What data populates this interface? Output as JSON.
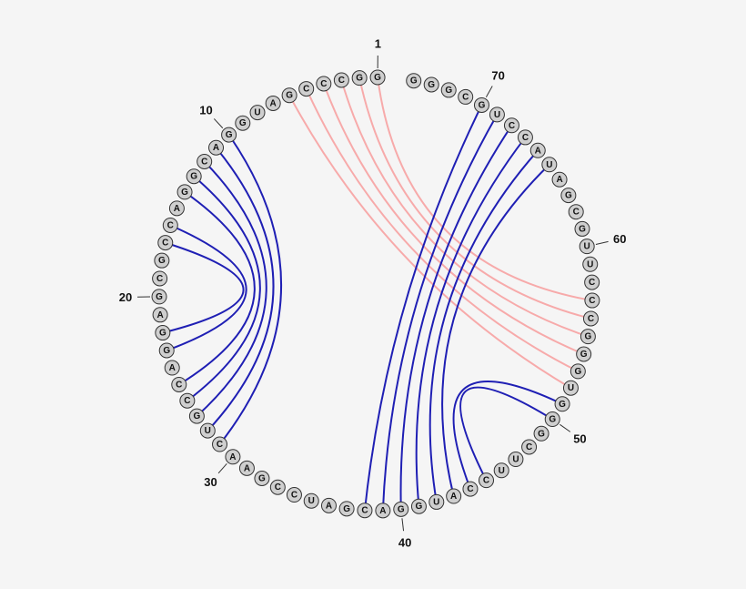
{
  "sequence": [
    "G",
    "G",
    "C",
    "C",
    "C",
    "G",
    "A",
    "U",
    "G",
    "G",
    "A",
    "C",
    "G",
    "G",
    "A",
    "C",
    "C",
    "G",
    "C",
    "G",
    "A",
    "G",
    "G",
    "A",
    "C",
    "C",
    "G",
    "U",
    "C",
    "A",
    "A",
    "G",
    "C",
    "C",
    "U",
    "A",
    "G",
    "C",
    "A",
    "G",
    "G",
    "U",
    "A",
    "C",
    "C",
    "U",
    "U",
    "C",
    "G",
    "G",
    "G",
    "U",
    "G",
    "G",
    "G",
    "C",
    "C",
    "C",
    "U",
    "U",
    "G",
    "C",
    "G",
    "A",
    "U",
    "A",
    "C",
    "C",
    "U",
    "G",
    "C",
    "G",
    "G",
    "G"
  ],
  "numbering": [
    1,
    10,
    20,
    30,
    40,
    50,
    60,
    70
  ],
  "pairs": [
    {
      "i": 1,
      "j": 57,
      "color": "#f7aaaa"
    },
    {
      "i": 2,
      "j": 56,
      "color": "#f7aaaa"
    },
    {
      "i": 3,
      "j": 55,
      "color": "#f7aaaa"
    },
    {
      "i": 4,
      "j": 54,
      "color": "#f7aaaa"
    },
    {
      "i": 5,
      "j": 53,
      "color": "#f7aaaa"
    },
    {
      "i": 6,
      "j": 52,
      "color": "#f7aaaa"
    },
    {
      "i": 10,
      "j": 29,
      "color": "#1f1fb4"
    },
    {
      "i": 11,
      "j": 28,
      "color": "#1f1fb4"
    },
    {
      "i": 12,
      "j": 27,
      "color": "#1f1fb4"
    },
    {
      "i": 13,
      "j": 26,
      "color": "#1f1fb4"
    },
    {
      "i": 14,
      "j": 25,
      "color": "#1f1fb4"
    },
    {
      "i": 16,
      "j": 23,
      "color": "#1f1fb4"
    },
    {
      "i": 17,
      "j": 22,
      "color": "#1f1fb4"
    },
    {
      "i": 38,
      "j": 70,
      "color": "#1f1fb4"
    },
    {
      "i": 39,
      "j": 69,
      "color": "#1f1fb4"
    },
    {
      "i": 40,
      "j": 68,
      "color": "#1f1fb4"
    },
    {
      "i": 41,
      "j": 67,
      "color": "#1f1fb4"
    },
    {
      "i": 42,
      "j": 66,
      "color": "#1f1fb4"
    },
    {
      "i": 43,
      "j": 65,
      "color": "#1f1fb4"
    },
    {
      "i": 44,
      "j": 51,
      "color": "#1f1fb4"
    },
    {
      "i": 45,
      "j": 50,
      "color": "#1f1fb4"
    }
  ]
}
